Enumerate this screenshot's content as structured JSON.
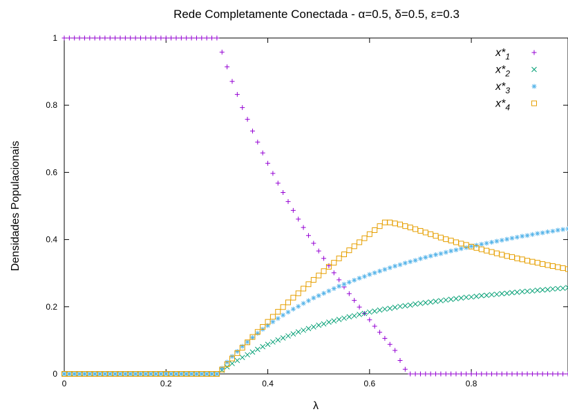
{
  "chart_data": {
    "type": "scatter",
    "title": "Rede Completamente Conectada - α=0.5, δ=0.5, ε=0.3",
    "xlabel": "λ",
    "ylabel": "Densidades Populacionais",
    "xlim": [
      0,
      0.99
    ],
    "ylim": [
      0,
      1
    ],
    "x_ticks": [
      "0",
      "0.2",
      "0.4",
      "0.6",
      "0.8"
    ],
    "y_ticks": [
      "0",
      "0.2",
      "0.4",
      "0.6",
      "0.8",
      "1"
    ],
    "grid": false,
    "legend_position": "top-right",
    "x_step": 0.01,
    "series": [
      {
        "name": "x*1",
        "base": "x*",
        "sub": "1",
        "marker": "plus",
        "color": "#9400d3",
        "values": [
          1,
          1,
          1,
          1,
          1,
          1,
          1,
          1,
          1,
          1,
          1,
          1,
          1,
          1,
          1,
          1,
          1,
          1,
          1,
          1,
          1,
          1,
          1,
          1,
          1,
          1,
          1,
          1,
          1,
          1,
          1,
          0.958,
          0.914,
          0.871,
          0.832,
          0.793,
          0.758,
          0.723,
          0.69,
          0.658,
          0.627,
          0.597,
          0.568,
          0.54,
          0.513,
          0.487,
          0.461,
          0.436,
          0.412,
          0.389,
          0.366,
          0.344,
          0.322,
          0.301,
          0.28,
          0.259,
          0.239,
          0.219,
          0.199,
          0.18,
          0.161,
          0.142,
          0.124,
          0.106,
          0.088,
          0.07,
          0.04,
          0.014,
          0,
          0,
          0,
          0,
          0,
          0,
          0,
          0,
          0,
          0,
          0,
          0,
          0,
          0,
          0,
          0,
          0,
          0,
          0,
          0,
          0,
          0,
          0,
          0,
          0,
          0,
          0,
          0,
          0,
          0,
          0,
          0
        ]
      },
      {
        "name": "x*2",
        "base": "x*",
        "sub": "2",
        "marker": "cross",
        "color": "#009e73",
        "values": [
          0,
          0,
          0,
          0,
          0,
          0,
          0,
          0,
          0,
          0,
          0,
          0,
          0,
          0,
          0,
          0,
          0,
          0,
          0,
          0,
          0,
          0,
          0,
          0,
          0,
          0,
          0,
          0,
          0,
          0,
          0,
          0.011,
          0.021,
          0.031,
          0.04,
          0.049,
          0.057,
          0.065,
          0.073,
          0.081,
          0.088,
          0.095,
          0.101,
          0.107,
          0.113,
          0.119,
          0.125,
          0.13,
          0.135,
          0.14,
          0.145,
          0.149,
          0.154,
          0.158,
          0.162,
          0.166,
          0.17,
          0.173,
          0.177,
          0.18,
          0.184,
          0.187,
          0.19,
          0.193,
          0.195,
          0.198,
          0.201,
          0.203,
          0.205,
          0.208,
          0.21,
          0.212,
          0.214,
          0.216,
          0.218,
          0.22,
          0.222,
          0.224,
          0.226,
          0.228,
          0.229,
          0.231,
          0.233,
          0.234,
          0.236,
          0.237,
          0.239,
          0.24,
          0.242,
          0.243,
          0.245,
          0.246,
          0.247,
          0.249,
          0.25,
          0.251,
          0.253,
          0.254,
          0.255,
          0.257
        ]
      },
      {
        "name": "x*3",
        "base": "x*",
        "sub": "3",
        "marker": "star",
        "color": "#56b4e9",
        "values": [
          0,
          0,
          0,
          0,
          0,
          0,
          0,
          0,
          0,
          0,
          0,
          0,
          0,
          0,
          0,
          0,
          0,
          0,
          0,
          0,
          0,
          0,
          0,
          0,
          0,
          0,
          0,
          0,
          0,
          0,
          0,
          0.017,
          0.035,
          0.052,
          0.067,
          0.082,
          0.095,
          0.108,
          0.121,
          0.133,
          0.144,
          0.155,
          0.165,
          0.175,
          0.184,
          0.193,
          0.201,
          0.21,
          0.218,
          0.226,
          0.233,
          0.24,
          0.247,
          0.254,
          0.261,
          0.267,
          0.273,
          0.279,
          0.285,
          0.29,
          0.296,
          0.301,
          0.306,
          0.311,
          0.316,
          0.321,
          0.325,
          0.33,
          0.334,
          0.338,
          0.343,
          0.347,
          0.351,
          0.355,
          0.358,
          0.362,
          0.366,
          0.369,
          0.373,
          0.376,
          0.38,
          0.383,
          0.386,
          0.389,
          0.392,
          0.395,
          0.398,
          0.401,
          0.404,
          0.407,
          0.41,
          0.412,
          0.415,
          0.418,
          0.42,
          0.423,
          0.425,
          0.428,
          0.43,
          0.432
        ]
      },
      {
        "name": "x*4",
        "base": "x*",
        "sub": "4",
        "marker": "square",
        "color": "#e69f00",
        "values": [
          0,
          0,
          0,
          0,
          0,
          0,
          0,
          0,
          0,
          0,
          0,
          0,
          0,
          0,
          0,
          0,
          0,
          0,
          0,
          0,
          0,
          0,
          0,
          0,
          0,
          0,
          0,
          0,
          0,
          0,
          0,
          0.013,
          0.029,
          0.046,
          0.062,
          0.078,
          0.094,
          0.11,
          0.125,
          0.14,
          0.155,
          0.17,
          0.185,
          0.199,
          0.213,
          0.227,
          0.24,
          0.254,
          0.267,
          0.28,
          0.293,
          0.306,
          0.319,
          0.331,
          0.344,
          0.356,
          0.368,
          0.38,
          0.392,
          0.404,
          0.416,
          0.428,
          0.44,
          0.451,
          0.451,
          0.448,
          0.445,
          0.44,
          0.436,
          0.431,
          0.426,
          0.421,
          0.416,
          0.411,
          0.406,
          0.401,
          0.397,
          0.392,
          0.388,
          0.384,
          0.379,
          0.375,
          0.371,
          0.367,
          0.363,
          0.359,
          0.355,
          0.351,
          0.348,
          0.344,
          0.341,
          0.337,
          0.334,
          0.331,
          0.327,
          0.324,
          0.321,
          0.318,
          0.315,
          0.312
        ]
      }
    ]
  }
}
